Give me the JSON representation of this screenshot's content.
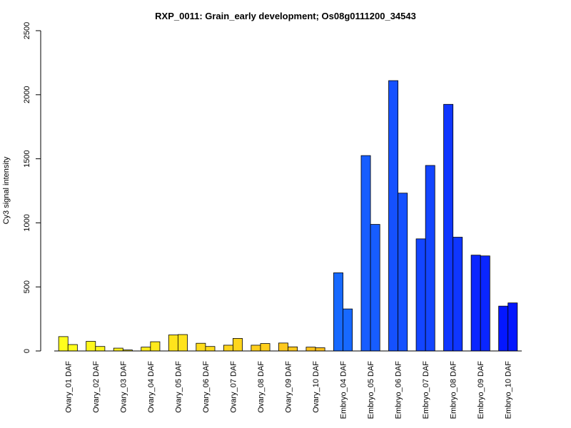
{
  "chart_data": {
    "type": "bar",
    "title": "RXP_0011: Grain_early development; Os08g0111200_34543",
    "xlabel": "",
    "ylabel": "Cy3 signal intensity",
    "ylim": [
      0,
      2500
    ],
    "yticks": [
      0,
      500,
      1000,
      1500,
      2000,
      2500
    ],
    "grid": false,
    "legend": "none",
    "categories": [
      "Ovary_01 DAF",
      "Ovary_02 DAF",
      "Ovary_03 DAF",
      "Ovary_04 DAF",
      "Ovary_05 DAF",
      "Ovary_06 DAF",
      "Ovary_07 DAF",
      "Ovary_08 DAF",
      "Ovary_09 DAF",
      "Ovary_10 DAF",
      "Embryo_04 DAF",
      "Embryo_05 DAF",
      "Embryo_06 DAF",
      "Embryo_07 DAF",
      "Embryo_08 DAF",
      "Embryo_09 DAF",
      "Embryo_10 DAF"
    ],
    "series": [
      {
        "values": [
          112,
          75,
          22,
          30,
          125,
          60,
          45,
          45,
          62,
          30,
          610,
          1525,
          2110,
          875,
          1925,
          748,
          350
        ]
      },
      {
        "values": [
          50,
          35,
          8,
          72,
          128,
          35,
          98,
          58,
          32,
          25,
          328,
          988,
          1232,
          1448,
          888,
          742,
          375
        ]
      }
    ],
    "colors": [
      "#fffe1c",
      "#fff71c",
      "#fff01c",
      "#ffea1c",
      "#ffe31c",
      "#ffdc1c",
      "#ffd51c",
      "#ffcf1c",
      "#ffc81c",
      "#ffc11c",
      "#1769ff",
      "#175dff",
      "#1551ff",
      "#1345ff",
      "#0f36ff",
      "#0a26ff",
      "#0417ff"
    ]
  }
}
